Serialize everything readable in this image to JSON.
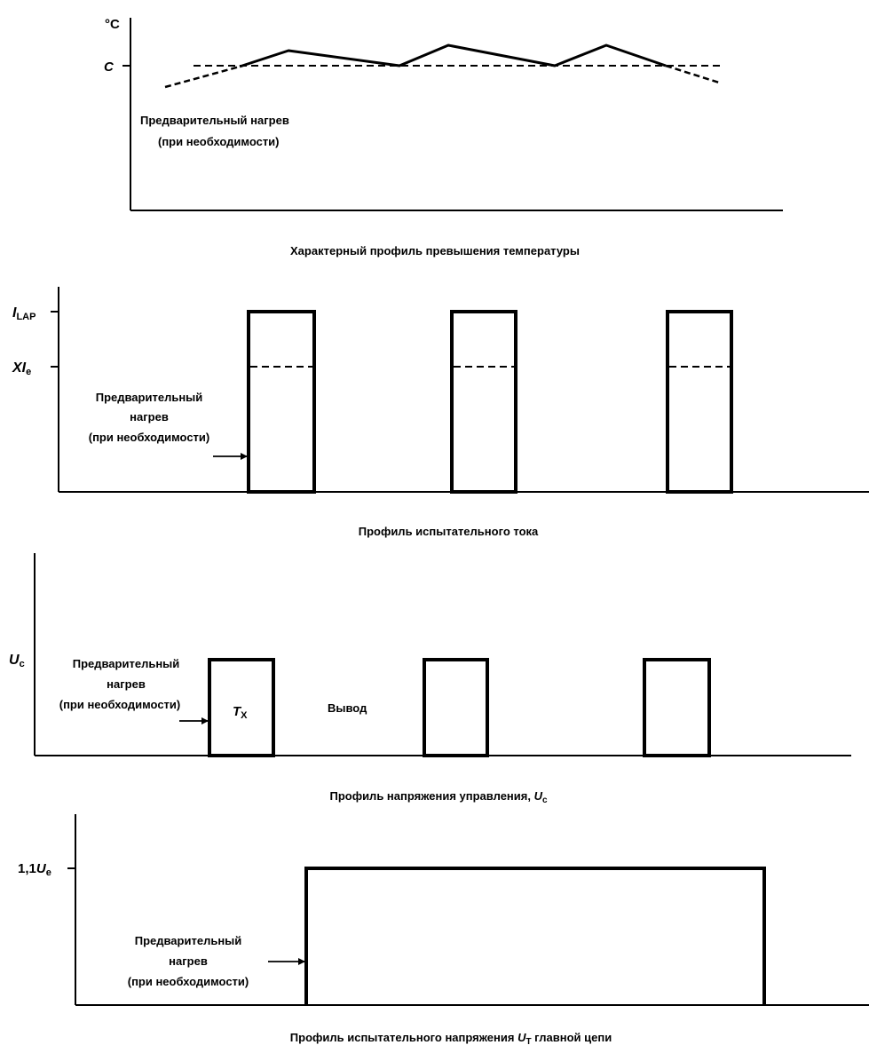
{
  "panel1": {
    "y_unit": "°C",
    "level_label": "C",
    "preheat_line1": "Предварительный нагрев",
    "preheat_line2": "(при необходимости)",
    "caption": "Характерный профиль превышения температуры"
  },
  "panel2": {
    "top_level_label": "I",
    "top_level_sub": "LAP",
    "mid_level_label": "XI",
    "mid_level_sub": "e",
    "preheat_line1": "Предварительный",
    "preheat_line2": "нагрев",
    "preheat_line3": "(при необходимости)",
    "caption": "Профиль испытательного тока"
  },
  "panel3": {
    "level_label": "U",
    "level_sub": "c",
    "preheat_line1": "Предварительный",
    "preheat_line2": "нагрев",
    "preheat_line3": "(при необходимости)",
    "on_label": "T",
    "on_sub": "X",
    "off_label": "Вывод",
    "caption_main": "Профиль напряжения управления, ",
    "caption_var": "U",
    "caption_sub": "c"
  },
  "panel4": {
    "level_label_prefix": "1,1",
    "level_label_var": "U",
    "level_label_sub": "e",
    "preheat_line1": "Предварительный",
    "preheat_line2": "нагрев",
    "preheat_line3": "(при необходимости)",
    "caption_main": "Профиль испытательного напряжения ",
    "caption_var": "U",
    "caption_sub": "T",
    "caption_tail": " главной цепи"
  }
}
